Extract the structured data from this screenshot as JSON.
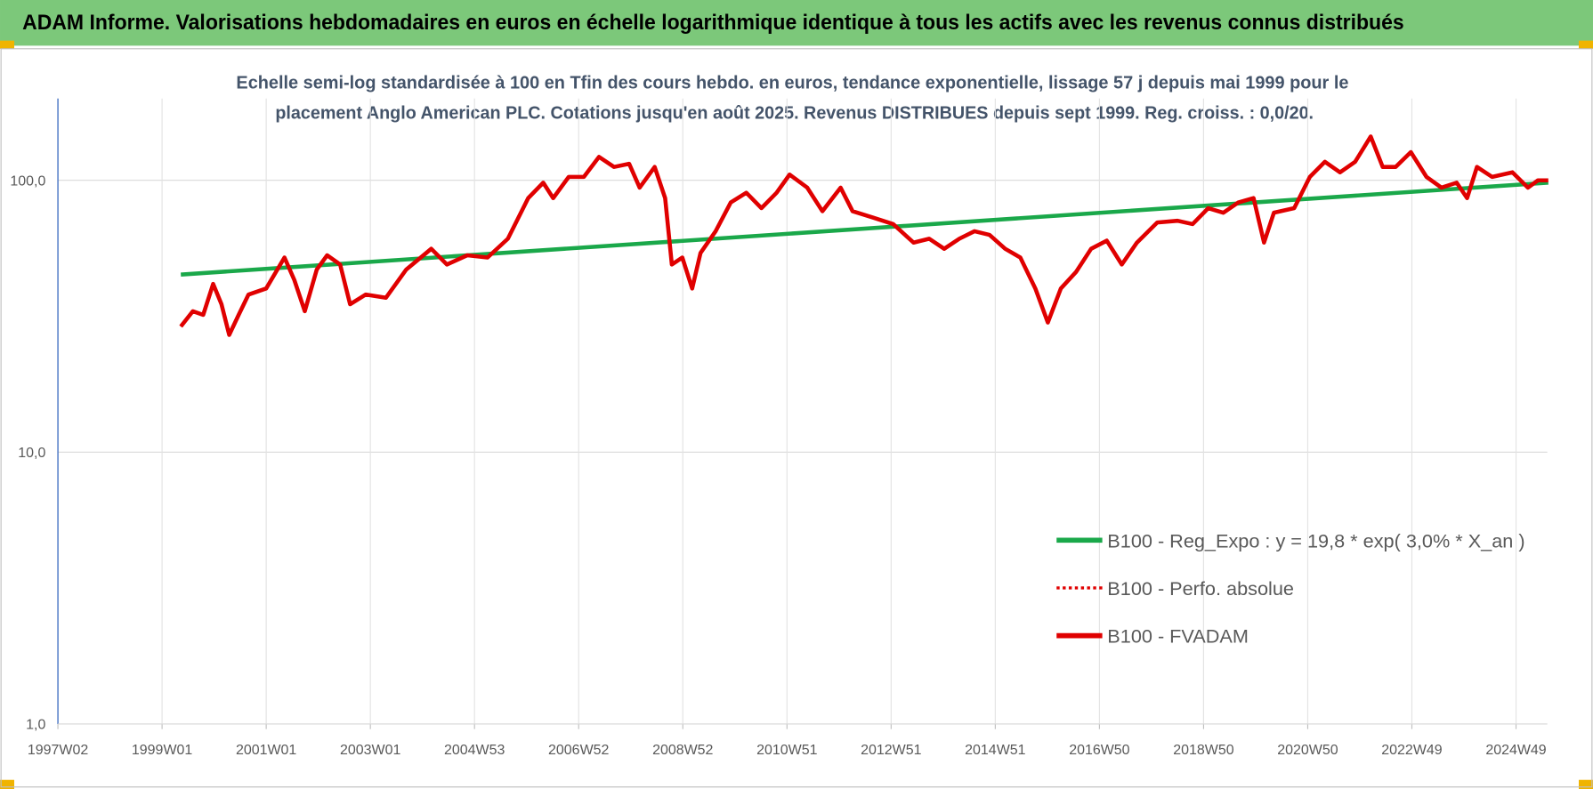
{
  "chart_data": {
    "type": "line",
    "header": "ADAM Informe. Valorisations hebdomadaires en euros en échelle logarithmique identique à tous les actifs avec les revenus connus distribués",
    "subtitle": [
      "Echelle semi-log standardisée à 100 en Tfin des cours hebdo. en euros, tendance exponentielle, lissage 57 j depuis mai 1999 pour le",
      "placement Anglo American PLC. Cotations jusqu'en août 2025. Revenus DISTRIBUES  depuis sept 1999. Reg. croiss. : 0,0/20."
    ],
    "log_scale": true,
    "grid": true,
    "legend": "lower right",
    "xlim": [
      1997.0,
      2025.6
    ],
    "xticks": [
      {
        "value": 1997,
        "label": "1997W02"
      },
      {
        "value": 1999,
        "label": "1999W01"
      },
      {
        "value": 2001,
        "label": "2001W01"
      },
      {
        "value": 2003,
        "label": "2003W01"
      },
      {
        "value": 2005,
        "label": "2004W53"
      },
      {
        "value": 2007,
        "label": "2006W52"
      },
      {
        "value": 2009,
        "label": "2008W52"
      },
      {
        "value": 2011,
        "label": "2010W51"
      },
      {
        "value": 2013,
        "label": "2012W51"
      },
      {
        "value": 2015,
        "label": "2014W51"
      },
      {
        "value": 2017,
        "label": "2016W50"
      },
      {
        "value": 2019,
        "label": "2018W50"
      },
      {
        "value": 2021,
        "label": "2020W50"
      },
      {
        "value": 2023,
        "label": "2022W49"
      },
      {
        "value": 2025,
        "label": "2024W49"
      }
    ],
    "ylim": [
      1,
      200
    ],
    "yticks": [
      {
        "value": 1,
        "label": "1,0"
      },
      {
        "value": 10,
        "label": "10,0"
      },
      {
        "value": 100,
        "label": "100,0"
      }
    ],
    "series": [
      {
        "name": "B100 - Reg_Expo : y = 19,8 * exp( 3,0% *  X_an )",
        "color": "#1aa84a",
        "style": "solid",
        "x": [
          1999.36,
          2025.62
        ],
        "values": [
          45,
          98
        ]
      },
      {
        "name": "B100 - Perfo. absolue",
        "color": "#e00000",
        "style": "dotted",
        "x": [
          1999.36,
          1999.59,
          1999.79,
          1999.98,
          2000.14,
          2000.29,
          2000.47,
          2000.66,
          2001.0,
          2001.35,
          2001.54,
          2001.74,
          2001.97,
          2002.17,
          2002.42,
          2002.61,
          2002.91,
          2003.3,
          2003.69,
          2004.17,
          2004.47,
          2004.86,
          2005.25,
          2005.64,
          2006.03,
          2006.32,
          2006.51,
          2006.81,
          2007.1,
          2007.39,
          2007.68,
          2007.97,
          2008.17,
          2008.46,
          2008.66,
          2008.79,
          2008.99,
          2009.18,
          2009.34,
          2009.63,
          2009.92,
          2010.22,
          2010.51,
          2010.8,
          2011.05,
          2011.39,
          2011.68,
          2012.03,
          2012.26,
          2012.65,
          2013.04,
          2013.43,
          2013.73,
          2014.02,
          2014.31,
          2014.6,
          2014.89,
          2015.19,
          2015.48,
          2015.77,
          2016.01,
          2016.26,
          2016.55,
          2016.84,
          2017.14,
          2017.43,
          2017.72,
          2018.11,
          2018.5,
          2018.79,
          2019.09,
          2019.38,
          2019.67,
          2019.96,
          2020.16,
          2020.35,
          2020.74,
          2021.04,
          2021.33,
          2021.62,
          2021.91,
          2022.21,
          2022.44,
          2022.69,
          2022.98,
          2023.28,
          2023.57,
          2023.86,
          2024.06,
          2024.25,
          2024.54,
          2024.93,
          2025.23,
          2025.42,
          2025.62
        ],
        "values": [
          29,
          33,
          32,
          41.6,
          35,
          27,
          32,
          38,
          40,
          52,
          43,
          33,
          47,
          53,
          49,
          35,
          38,
          37,
          47,
          56,
          49,
          53,
          52,
          61,
          86,
          98,
          86,
          103,
          103,
          122,
          112,
          115,
          94,
          112,
          86,
          49,
          52,
          40,
          54,
          65,
          83,
          90,
          79,
          90,
          105,
          94,
          77,
          94,
          77,
          73,
          69,
          59,
          61,
          56,
          61,
          65,
          63,
          56,
          52,
          40,
          30,
          40,
          46,
          56,
          60,
          49,
          59,
          70,
          71,
          69,
          79,
          76,
          83,
          86,
          59,
          76,
          79,
          103,
          117,
          107,
          117,
          145,
          112,
          112,
          127,
          103,
          94,
          98,
          86,
          112,
          103,
          107,
          94,
          100,
          100
        ]
      },
      {
        "name": "B100 - FVADAM",
        "color": "#e00000",
        "style": "solid",
        "x": [
          1999.36,
          1999.59,
          1999.79,
          1999.98,
          2000.14,
          2000.29,
          2000.47,
          2000.66,
          2001.0,
          2001.35,
          2001.54,
          2001.74,
          2001.97,
          2002.17,
          2002.42,
          2002.61,
          2002.91,
          2003.3,
          2003.69,
          2004.17,
          2004.47,
          2004.86,
          2005.25,
          2005.64,
          2006.03,
          2006.32,
          2006.51,
          2006.81,
          2007.1,
          2007.39,
          2007.68,
          2007.97,
          2008.17,
          2008.46,
          2008.66,
          2008.79,
          2008.99,
          2009.18,
          2009.34,
          2009.63,
          2009.92,
          2010.22,
          2010.51,
          2010.8,
          2011.05,
          2011.39,
          2011.68,
          2012.03,
          2012.26,
          2012.65,
          2013.04,
          2013.43,
          2013.73,
          2014.02,
          2014.31,
          2014.6,
          2014.89,
          2015.19,
          2015.48,
          2015.77,
          2016.01,
          2016.26,
          2016.55,
          2016.84,
          2017.14,
          2017.43,
          2017.72,
          2018.11,
          2018.5,
          2018.79,
          2019.09,
          2019.38,
          2019.67,
          2019.96,
          2020.16,
          2020.35,
          2020.74,
          2021.04,
          2021.33,
          2021.62,
          2021.91,
          2022.21,
          2022.44,
          2022.69,
          2022.98,
          2023.28,
          2023.57,
          2023.86,
          2024.06,
          2024.25,
          2024.54,
          2024.93,
          2025.23,
          2025.42,
          2025.62
        ],
        "values": [
          29,
          33,
          32,
          41.6,
          35,
          27,
          32,
          38,
          40,
          52,
          43,
          33,
          47,
          53,
          49,
          35,
          38,
          37,
          47,
          56,
          49,
          53,
          52,
          61,
          86,
          98,
          86,
          103,
          103,
          122,
          112,
          115,
          94,
          112,
          86,
          49,
          52,
          40,
          54,
          65,
          83,
          90,
          79,
          90,
          105,
          94,
          77,
          94,
          77,
          73,
          69,
          59,
          61,
          56,
          61,
          65,
          63,
          56,
          52,
          40,
          30,
          40,
          46,
          56,
          60,
          49,
          59,
          70,
          71,
          69,
          79,
          76,
          83,
          86,
          59,
          76,
          79,
          103,
          117,
          107,
          117,
          145,
          112,
          112,
          127,
          103,
          94,
          98,
          86,
          112,
          103,
          107,
          94,
          100,
          100
        ]
      }
    ]
  }
}
